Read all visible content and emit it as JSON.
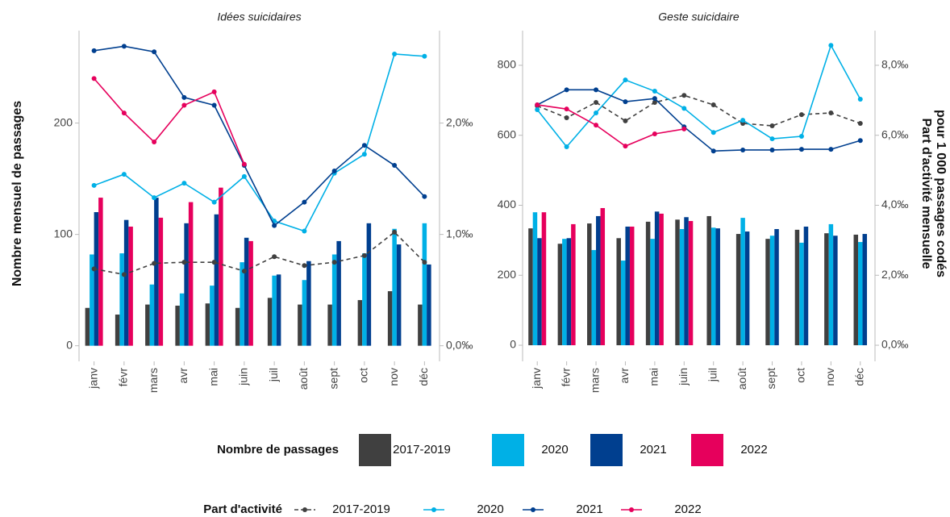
{
  "ylabel": "Nombre mensuel de passages",
  "y2label": [
    "Part d'activité mensuelle",
    "pour 1 000 passages codés"
  ],
  "legend": {
    "bar_title": "Nombre de passages",
    "line_title": "Part d'activité"
  },
  "chart_data": [
    {
      "type": "combo",
      "title": "Idées suicidaires",
      "categories": [
        "janv",
        "févr",
        "mars",
        "avr",
        "mai",
        "juin",
        "juil",
        "août",
        "sept",
        "oct",
        "nov",
        "déc"
      ],
      "ylim": [
        -14,
        283
      ],
      "yticks": [
        0,
        100,
        200
      ],
      "y2lim": [
        -0.14,
        2.83
      ],
      "y2ticks": [
        {
          "value": 0,
          "label": "0,0‰"
        },
        {
          "value": 1,
          "label": "1,0‰"
        },
        {
          "value": 2,
          "label": "2,0‰"
        }
      ],
      "series": [
        {
          "name": "2017-2019",
          "type": "bar",
          "color": "#404040",
          "values": [
            34,
            28,
            37,
            36,
            38,
            34,
            43,
            37,
            37,
            41,
            49,
            37
          ]
        },
        {
          "name": "2020",
          "type": "bar",
          "color": "#00b0e6",
          "values": [
            82,
            83,
            55,
            47,
            54,
            75,
            63,
            59,
            82,
            83,
            105,
            110
          ]
        },
        {
          "name": "2021",
          "type": "bar",
          "color": "#003f8f",
          "values": [
            120,
            113,
            133,
            110,
            118,
            97,
            64,
            76,
            94,
            110,
            91,
            73
          ]
        },
        {
          "name": "2022",
          "type": "bar",
          "color": "#e6005c",
          "values": [
            133,
            107,
            115,
            129,
            142,
            94,
            null,
            null,
            null,
            null,
            null,
            null
          ]
        },
        {
          "name": "2017-2019",
          "type": "line",
          "axis": "y2",
          "dashed": true,
          "color": "#404040",
          "values": [
            0.69,
            0.64,
            0.74,
            0.75,
            0.75,
            0.67,
            0.8,
            0.72,
            0.75,
            0.81,
            1.02,
            0.75
          ]
        },
        {
          "name": "2020",
          "type": "line",
          "axis": "y2",
          "color": "#00b0e6",
          "values": [
            1.44,
            1.54,
            1.33,
            1.46,
            1.29,
            1.52,
            1.12,
            1.03,
            1.55,
            1.72,
            2.62,
            2.6
          ]
        },
        {
          "name": "2021",
          "type": "line",
          "axis": "y2",
          "color": "#003f8f",
          "values": [
            2.65,
            2.69,
            2.64,
            2.23,
            2.16,
            1.62,
            1.08,
            1.29,
            1.57,
            1.8,
            1.62,
            1.34
          ]
        },
        {
          "name": "2022",
          "type": "line",
          "axis": "y2",
          "color": "#e6005c",
          "values": [
            2.4,
            2.09,
            1.83,
            2.16,
            2.28,
            1.63,
            null,
            null,
            null,
            null,
            null,
            null
          ]
        }
      ]
    },
    {
      "type": "combo",
      "title": "Geste suicidaire",
      "categories": [
        "janv",
        "févr",
        "mars",
        "avr",
        "mai",
        "juin",
        "juil",
        "août",
        "sept",
        "oct",
        "nov",
        "déc"
      ],
      "ylim": [
        -46,
        899
      ],
      "yticks": [
        0,
        200,
        400,
        600,
        800
      ],
      "y2lim": [
        -0.46,
        8.99
      ],
      "y2ticks": [
        {
          "value": 0,
          "label": "0,0‰"
        },
        {
          "value": 2,
          "label": "2,0‰"
        },
        {
          "value": 4,
          "label": "4,0‰"
        },
        {
          "value": 6,
          "label": "6,0‰"
        },
        {
          "value": 8,
          "label": "8,0‰"
        }
      ],
      "series": [
        {
          "name": "2017-2019",
          "type": "bar",
          "color": "#404040",
          "values": [
            334,
            290,
            348,
            306,
            353,
            359,
            369,
            318,
            304,
            330,
            320,
            316
          ]
        },
        {
          "name": "2020",
          "type": "bar",
          "color": "#00b0e6",
          "values": [
            380,
            304,
            272,
            242,
            304,
            332,
            336,
            364,
            313,
            293,
            346,
            295
          ]
        },
        {
          "name": "2021",
          "type": "bar",
          "color": "#003f8f",
          "values": [
            306,
            306,
            369,
            339,
            382,
            366,
            334,
            325,
            332,
            339,
            313,
            318
          ]
        },
        {
          "name": "2022",
          "type": "bar",
          "color": "#e6005c",
          "values": [
            380,
            346,
            392,
            339,
            376,
            355,
            null,
            null,
            null,
            null,
            null,
            null
          ]
        },
        {
          "name": "2017-2019",
          "type": "line",
          "axis": "y2",
          "dashed": true,
          "color": "#404040",
          "values": [
            6.84,
            6.5,
            6.94,
            6.41,
            6.94,
            7.14,
            6.87,
            6.34,
            6.27,
            6.59,
            6.64,
            6.34
          ]
        },
        {
          "name": "2020",
          "type": "line",
          "axis": "y2",
          "color": "#00b0e6",
          "values": [
            6.73,
            5.67,
            6.64,
            7.58,
            7.26,
            6.77,
            6.08,
            6.43,
            5.9,
            5.97,
            8.57,
            7.03
          ]
        },
        {
          "name": "2021",
          "type": "line",
          "axis": "y2",
          "color": "#003f8f",
          "values": [
            6.87,
            7.3,
            7.3,
            6.96,
            7.05,
            6.24,
            5.55,
            5.58,
            5.58,
            5.6,
            5.6,
            5.85
          ]
        },
        {
          "name": "2022",
          "type": "line",
          "axis": "y2",
          "color": "#e6005c",
          "values": [
            6.87,
            6.75,
            6.29,
            5.69,
            6.04,
            6.18,
            null,
            null,
            null,
            null,
            null,
            null
          ]
        }
      ]
    }
  ]
}
